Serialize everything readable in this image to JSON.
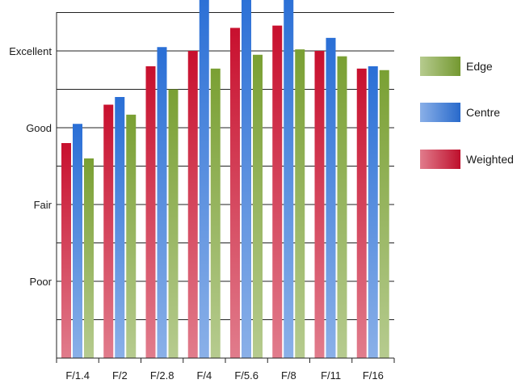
{
  "chart_data": {
    "type": "bar",
    "title": "",
    "xlabel": "",
    "ylabel": "",
    "categories": [
      "F/1.4",
      "F/2",
      "F/2.8",
      "F/4",
      "F/5.6",
      "F/8",
      "F/11",
      "F/16"
    ],
    "y_ticks": [
      {
        "value": 1,
        "label": "Poor"
      },
      {
        "value": 2,
        "label": "Fair"
      },
      {
        "value": 3,
        "label": "Good"
      },
      {
        "value": 4,
        "label": "Excellent"
      }
    ],
    "ylim": [
      0,
      4.5
    ],
    "minor_gridlines": [
      0.5,
      1,
      1.5,
      2,
      2.5,
      3,
      3.5,
      4,
      4.5
    ],
    "grid": true,
    "legend_position": "right",
    "series": [
      {
        "name": "Weighted",
        "color": "#c8102e",
        "values": [
          2.8,
          3.3,
          3.8,
          4.0,
          4.3,
          4.33,
          4.0,
          3.77
        ]
      },
      {
        "name": "Centre",
        "color": "#2a6fd6",
        "values": [
          3.05,
          3.4,
          4.05,
          4.75,
          4.8,
          4.78,
          4.17,
          3.8
        ]
      },
      {
        "name": "Edge",
        "color": "#7aa033",
        "values": [
          2.6,
          3.17,
          3.5,
          3.77,
          3.95,
          4.02,
          3.93,
          3.75
        ]
      }
    ],
    "legend_order": [
      "Edge",
      "Centre",
      "Weighted"
    ]
  }
}
